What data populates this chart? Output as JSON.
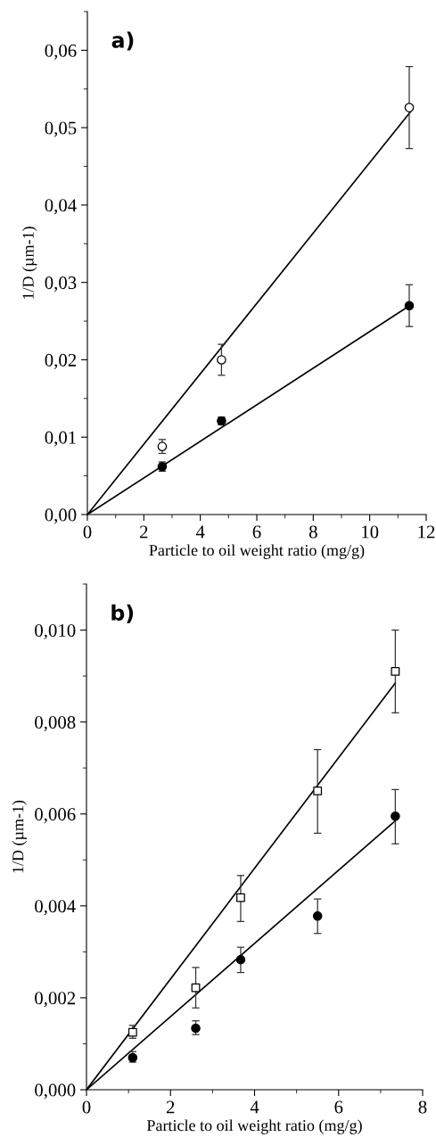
{
  "chart_data": [
    {
      "type": "scatter",
      "xlabel": "Particle to oil weight ratio (mg/g)",
      "ylabel": "1/D (µm-1)",
      "annotations": [
        "a)"
      ],
      "xlim": [
        0,
        12
      ],
      "xticks": [
        0,
        2,
        4,
        6,
        8,
        10,
        12
      ],
      "ylim": [
        0,
        0.065
      ],
      "yticks": [
        {
          "value": 0,
          "label": "0,00"
        },
        {
          "value": 0.01,
          "label": "0,01"
        },
        {
          "value": 0.02,
          "label": "0,02"
        },
        {
          "value": 0.03,
          "label": "0,03"
        },
        {
          "value": 0.04,
          "label": "0,04"
        },
        {
          "value": 0.05,
          "label": "0,05"
        },
        {
          "value": 0.06,
          "label": "0,06"
        }
      ],
      "grid": false,
      "series": [
        {
          "marker": "circle",
          "color": "#ffffff",
          "x": [
            2.65,
            4.75,
            11.4
          ],
          "values": [
            0.0088,
            0.02,
            0.0526
          ],
          "errors": [
            [
              0.0079,
              0.0097
            ],
            [
              0.018,
              0.022
            ],
            [
              0.0473,
              0.0579
            ]
          ]
        },
        {
          "marker": "circle",
          "color": "#000000",
          "x": [
            2.65,
            4.75,
            11.4
          ],
          "values": [
            0.0062,
            0.0121,
            0.027
          ],
          "errors": [
            [
              0.0056,
              0.0068
            ],
            [
              0.0116,
              0.0126
            ],
            [
              0.0243,
              0.0297
            ]
          ]
        },
        {
          "type": "line",
          "marker": "none",
          "color": "#000000",
          "x": [
            0,
            11.5
          ],
          "values": [
            0,
            0.0523
          ]
        },
        {
          "type": "line",
          "marker": "none",
          "color": "#000000",
          "x": [
            0,
            11.5
          ],
          "values": [
            0,
            0.0272
          ]
        }
      ]
    },
    {
      "type": "scatter",
      "xlabel": "Particle to oil weight ratio (mg/g)",
      "ylabel": "1/D (µm-1)",
      "annotations": [
        "b)"
      ],
      "xlim": [
        0,
        8
      ],
      "xticks": [
        0,
        2,
        4,
        6,
        8
      ],
      "ylim": [
        0,
        0.011
      ],
      "yticks": [
        {
          "value": 0,
          "label": "0,000"
        },
        {
          "value": 0.002,
          "label": "0,002"
        },
        {
          "value": 0.004,
          "label": "0,004"
        },
        {
          "value": 0.006,
          "label": "0,006"
        },
        {
          "value": 0.008,
          "label": "0,008"
        },
        {
          "value": 0.01,
          "label": "0,010"
        }
      ],
      "grid": false,
      "series": [
        {
          "marker": "square",
          "color": "#ffffff",
          "x": [
            1.1,
            2.6,
            3.67,
            5.5,
            7.35
          ],
          "values": [
            0.00125,
            0.00222,
            0.00418,
            0.0065,
            0.0091
          ],
          "errors": [
            [
              0.00112,
              0.0014
            ],
            [
              0.00178,
              0.00266
            ],
            [
              0.00366,
              0.00466
            ],
            [
              0.00558,
              0.0074
            ],
            [
              0.0082,
              0.01
            ]
          ]
        },
        {
          "marker": "circle",
          "color": "#000000",
          "x": [
            1.1,
            2.6,
            3.67,
            5.5,
            7.35
          ],
          "values": [
            0.0007,
            0.00134,
            0.00283,
            0.00378,
            0.00595
          ],
          "errors": [
            [
              0.0006,
              0.00083
            ],
            [
              0.0012,
              0.0015
            ],
            [
              0.00255,
              0.0031
            ],
            [
              0.0034,
              0.00415
            ],
            [
              0.00535,
              0.00653
            ]
          ]
        },
        {
          "type": "line",
          "marker": "none",
          "color": "#000000",
          "x": [
            0,
            7.35
          ],
          "values": [
            0,
            0.00885
          ]
        },
        {
          "type": "line",
          "marker": "none",
          "color": "#000000",
          "x": [
            0,
            7.35
          ],
          "values": [
            0,
            0.00585
          ]
        }
      ]
    }
  ]
}
